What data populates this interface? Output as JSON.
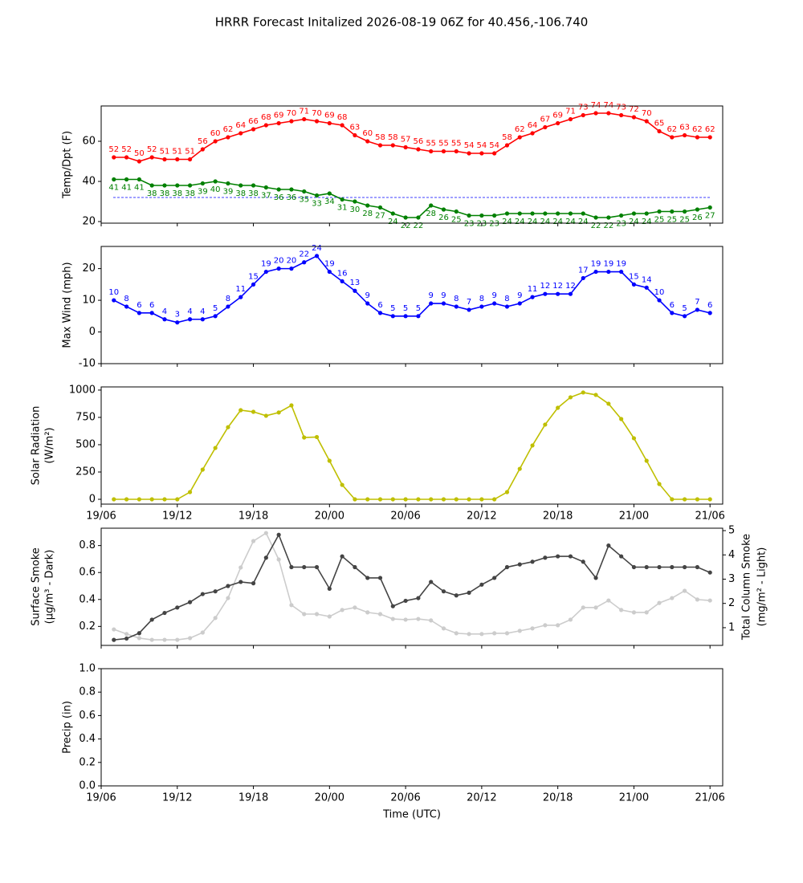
{
  "title": "HRRR Forecast Initalized 2026-08-19 06Z for 40.456,-106.740",
  "chart_data": [
    {
      "type": "line",
      "ylabel": [
        "Temp/Dpt (F)"
      ],
      "ylim": [
        19.2,
        77.6
      ],
      "yticks": [
        20,
        40,
        60
      ],
      "xlim": [
        "19/06",
        "21/07"
      ],
      "xticks": [
        "19/06",
        "19/12",
        "19/18",
        "20/00",
        "20/06",
        "20/12",
        "20/18",
        "21/00",
        "21/06"
      ],
      "xtick_labels": false,
      "x": [
        "19/07",
        "19/08",
        "19/09",
        "19/10",
        "19/11",
        "19/12",
        "19/13",
        "19/14",
        "19/15",
        "19/16",
        "19/17",
        "19/18",
        "19/19",
        "19/20",
        "19/21",
        "19/22",
        "19/23",
        "20/00",
        "20/01",
        "20/02",
        "20/03",
        "20/04",
        "20/05",
        "20/06",
        "20/07",
        "20/08",
        "20/09",
        "20/10",
        "20/11",
        "20/12",
        "20/13",
        "20/14",
        "20/15",
        "20/16",
        "20/17",
        "20/18",
        "20/19",
        "20/20",
        "20/21",
        "20/22",
        "20/23",
        "21/00",
        "21/01",
        "21/02",
        "21/03",
        "21/04",
        "21/05",
        "21/06"
      ],
      "reference_line": {
        "value": 32,
        "color": "#0000ff",
        "dashed": true
      },
      "series": [
        {
          "name": "Temp",
          "color": "#ff0000",
          "label_position": "above",
          "values": [
            52,
            52,
            50,
            52,
            51,
            51,
            51,
            56,
            60,
            62,
            64,
            66,
            68,
            69,
            70,
            71,
            70,
            69,
            68,
            63,
            60,
            58,
            58,
            57,
            56,
            55,
            55,
            55,
            54,
            54,
            54,
            58,
            62,
            64,
            67,
            69,
            71,
            73,
            74,
            74,
            73,
            72,
            70,
            65,
            62,
            63,
            62,
            62
          ]
        },
        {
          "name": "Dpt",
          "color": "#008000",
          "label_position": "below",
          "values": [
            41,
            41,
            41,
            38,
            38,
            38,
            38,
            39,
            40,
            39,
            38,
            38,
            37,
            36,
            36,
            35,
            33,
            34,
            31,
            30,
            28,
            27,
            24,
            22,
            22,
            28,
            26,
            25,
            23,
            23,
            23,
            24,
            24,
            24,
            24,
            24,
            24,
            24,
            22,
            22,
            23,
            24,
            24,
            25,
            25,
            25,
            26,
            27
          ]
        }
      ]
    },
    {
      "type": "line",
      "ylabel": [
        "Max Wind (mph)"
      ],
      "ylim": [
        -10,
        27
      ],
      "yticks": [
        -10,
        0,
        10,
        20
      ],
      "xlim": [
        "19/06",
        "21/07"
      ],
      "xticks": [
        "19/06",
        "19/12",
        "19/18",
        "20/00",
        "20/06",
        "20/12",
        "20/18",
        "21/00",
        "21/06"
      ],
      "xtick_labels": false,
      "x": [
        "19/07",
        "19/08",
        "19/09",
        "19/10",
        "19/11",
        "19/12",
        "19/13",
        "19/14",
        "19/15",
        "19/16",
        "19/17",
        "19/18",
        "19/19",
        "19/20",
        "19/21",
        "19/22",
        "19/23",
        "20/00",
        "20/01",
        "20/02",
        "20/03",
        "20/04",
        "20/05",
        "20/06",
        "20/07",
        "20/08",
        "20/09",
        "20/10",
        "20/11",
        "20/12",
        "20/13",
        "20/14",
        "20/15",
        "20/16",
        "20/17",
        "20/18",
        "20/19",
        "20/20",
        "20/21",
        "20/22",
        "20/23",
        "21/00",
        "21/01",
        "21/02",
        "21/03",
        "21/04",
        "21/05",
        "21/06"
      ],
      "series": [
        {
          "name": "Max Wind",
          "color": "#0000ff",
          "label_position": "above",
          "values": [
            10,
            8,
            6,
            6,
            4,
            3,
            4,
            4,
            5,
            8,
            11,
            15,
            19,
            20,
            20,
            22,
            24,
            19,
            16,
            13,
            9,
            6,
            5,
            5,
            5,
            9,
            9,
            8,
            7,
            8,
            9,
            8,
            9,
            11,
            12,
            12,
            12,
            17,
            19,
            19,
            19,
            15,
            14,
            10,
            6,
            5,
            7,
            6
          ]
        }
      ]
    },
    {
      "type": "line",
      "ylabel": [
        "Solar Radiation",
        "(W/m²)"
      ],
      "ylim": [
        -44,
        1029
      ],
      "yticks": [
        0,
        250,
        500,
        750,
        1000
      ],
      "xlim": [
        "19/06",
        "21/07"
      ],
      "xticks": [
        "19/06",
        "19/12",
        "19/18",
        "20/00",
        "20/06",
        "20/12",
        "20/18",
        "21/00",
        "21/06"
      ],
      "xtick_labels": true,
      "x": [
        "19/07",
        "19/08",
        "19/09",
        "19/10",
        "19/11",
        "19/12",
        "19/13",
        "19/14",
        "19/15",
        "19/16",
        "19/17",
        "19/18",
        "19/19",
        "19/20",
        "19/21",
        "19/22",
        "19/23",
        "20/00",
        "20/01",
        "20/02",
        "20/03",
        "20/04",
        "20/05",
        "20/06",
        "20/07",
        "20/08",
        "20/09",
        "20/10",
        "20/11",
        "20/12",
        "20/13",
        "20/14",
        "20/15",
        "20/16",
        "20/17",
        "20/18",
        "20/19",
        "20/20",
        "20/21",
        "20/22",
        "20/23",
        "21/00",
        "21/01",
        "21/02",
        "21/03",
        "21/04",
        "21/05",
        "21/06"
      ],
      "series": [
        {
          "name": "Solar",
          "color": "#bfbf00",
          "values": [
            0,
            0,
            0,
            0,
            0,
            0,
            66,
            272,
            470,
            660,
            816,
            801,
            765,
            795,
            860,
            566,
            570,
            353,
            132,
            0,
            0,
            0,
            0,
            0,
            0,
            0,
            0,
            0,
            0,
            0,
            0,
            66,
            279,
            493,
            684,
            838,
            934,
            978,
            956,
            875,
            735,
            559,
            353,
            140,
            0,
            0,
            0,
            0
          ]
        }
      ]
    },
    {
      "type": "line",
      "ylabel": [
        "Surface Smoke",
        "(μg/m³ - Dark)"
      ],
      "y2label": [
        "Total Column Smoke",
        "(mg/m² - Light)"
      ],
      "ylim": [
        0.059,
        0.929
      ],
      "yticks": [
        0.2,
        0.4,
        0.6,
        0.8
      ],
      "y2lim": [
        0.27,
        5.1
      ],
      "y2ticks": [
        1,
        2,
        3,
        4,
        5
      ],
      "xlim": [
        "19/06",
        "21/07"
      ],
      "xticks": [
        "19/06",
        "19/12",
        "19/18",
        "20/00",
        "20/06",
        "20/12",
        "20/18",
        "21/00",
        "21/06"
      ],
      "xtick_labels": false,
      "x": [
        "19/07",
        "19/08",
        "19/09",
        "19/10",
        "19/11",
        "19/12",
        "19/13",
        "19/14",
        "19/15",
        "19/16",
        "19/17",
        "19/18",
        "19/19",
        "19/20",
        "19/21",
        "19/22",
        "19/23",
        "20/00",
        "20/01",
        "20/02",
        "20/03",
        "20/04",
        "20/05",
        "20/06",
        "20/07",
        "20/08",
        "20/09",
        "20/10",
        "20/11",
        "20/12",
        "20/13",
        "20/14",
        "20/15",
        "20/16",
        "20/17",
        "20/18",
        "20/19",
        "20/20",
        "20/21",
        "20/22",
        "20/23",
        "21/00",
        "21/01",
        "21/02",
        "21/03",
        "21/04",
        "21/05",
        "21/06"
      ],
      "series": [
        {
          "name": "Total Column Smoke",
          "color": "#cccccc",
          "axis": "y2",
          "values": [
            0.93,
            0.74,
            0.57,
            0.5,
            0.5,
            0.5,
            0.57,
            0.8,
            1.4,
            2.22,
            3.48,
            4.57,
            4.9,
            3.81,
            1.93,
            1.56,
            1.56,
            1.46,
            1.73,
            1.83,
            1.63,
            1.56,
            1.36,
            1.33,
            1.36,
            1.3,
            0.97,
            0.77,
            0.74,
            0.74,
            0.77,
            0.77,
            0.87,
            0.97,
            1.1,
            1.1,
            1.33,
            1.83,
            1.83,
            2.12,
            1.73,
            1.63,
            1.63,
            2.02,
            2.22,
            2.52,
            2.16,
            2.12
          ]
        },
        {
          "name": "Surface Smoke",
          "color": "#444444",
          "values": [
            0.1,
            0.11,
            0.15,
            0.25,
            0.3,
            0.34,
            0.38,
            0.44,
            0.46,
            0.5,
            0.53,
            0.52,
            0.71,
            0.88,
            0.64,
            0.64,
            0.64,
            0.48,
            0.72,
            0.64,
            0.56,
            0.56,
            0.35,
            0.39,
            0.41,
            0.53,
            0.46,
            0.43,
            0.45,
            0.51,
            0.56,
            0.64,
            0.66,
            0.68,
            0.71,
            0.72,
            0.72,
            0.68,
            0.56,
            0.8,
            0.72,
            0.64,
            0.64,
            0.64,
            0.64,
            0.64,
            0.64,
            0.6
          ]
        }
      ]
    },
    {
      "type": "line",
      "ylabel": [
        "Precip (in)"
      ],
      "xlabel": "Time (UTC)",
      "ylim": [
        0,
        1
      ],
      "yticks": [
        {
          "value": 0,
          "label": "0.0"
        },
        0.2,
        0.4,
        0.6,
        0.8,
        {
          "value": 1,
          "label": "1.0"
        }
      ],
      "xlim": [
        "19/06",
        "21/07"
      ],
      "xticks": [
        "19/06",
        "19/12",
        "19/18",
        "20/00",
        "20/06",
        "20/12",
        "20/18",
        "21/00",
        "21/06"
      ],
      "xtick_labels": true,
      "series": []
    }
  ]
}
